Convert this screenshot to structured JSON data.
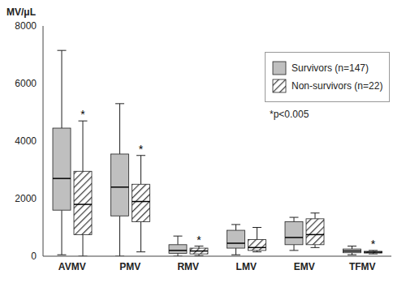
{
  "chart_data": {
    "type": "boxplot",
    "y_label": "MV/μL",
    "categories": [
      "AVMV",
      "PMV",
      "RMV",
      "LMV",
      "EMV",
      "TFMV"
    ],
    "ylim": [
      0,
      8000
    ],
    "yticks": [
      0,
      2000,
      4000,
      6000,
      8000
    ],
    "grid": false,
    "legend": "upper right",
    "annotation": "*p<0.005",
    "series": [
      {
        "name": "Survivors (n=147)",
        "color": "#bfbfbf",
        "min": [
          50,
          0,
          0,
          50,
          200,
          50
        ],
        "q1": [
          1600,
          1400,
          100,
          280,
          400,
          120
        ],
        "median": [
          2700,
          2400,
          200,
          450,
          650,
          180
        ],
        "q3": [
          4450,
          3550,
          400,
          900,
          1200,
          250
        ],
        "max": [
          7150,
          5300,
          700,
          1100,
          1350,
          350
        ]
      },
      {
        "name": "Non-survivors (n=22)",
        "color": "#404040",
        "min": [
          0,
          150,
          20,
          150,
          300,
          80
        ],
        "q1": [
          750,
          1200,
          80,
          200,
          400,
          110
        ],
        "median": [
          1800,
          1900,
          180,
          300,
          750,
          140
        ],
        "q3": [
          2950,
          2500,
          280,
          580,
          1300,
          170
        ],
        "max": [
          4700,
          3500,
          350,
          1000,
          1500,
          200
        ],
        "significance": [
          "*",
          "*",
          "*",
          null,
          null,
          "*"
        ]
      }
    ]
  }
}
